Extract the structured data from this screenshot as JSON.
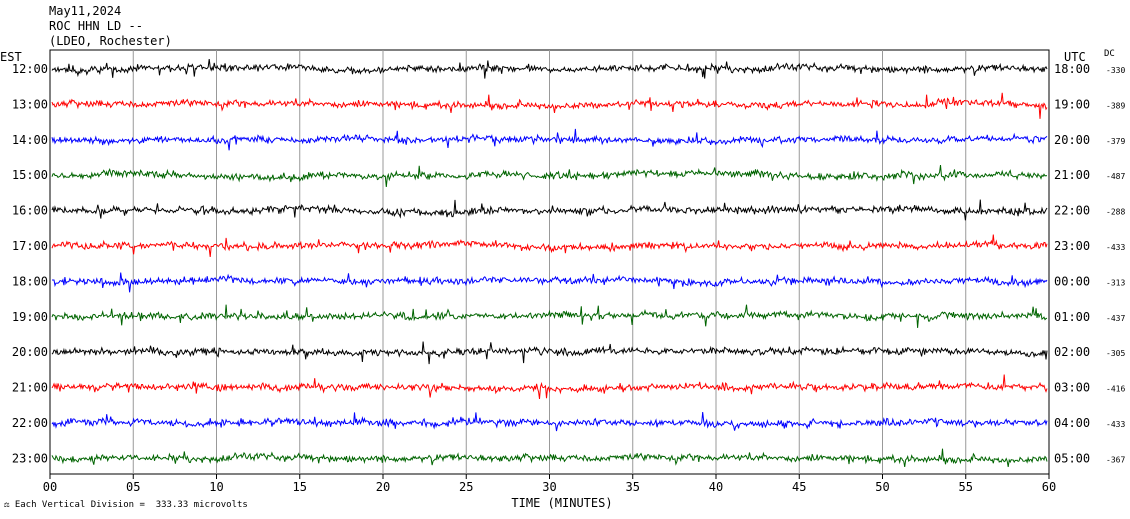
{
  "header": {
    "date": "May11,2024",
    "station": "ROC HHN LD --",
    "location": "(LDEO, Rochester)"
  },
  "left_axis_title": "EST",
  "right_axis_title": "UTC",
  "dc_title": "DC",
  "footer_note": "Each Vertical Division =  333.33 microvolts",
  "colors": [
    "#000000",
    "#ff0000",
    "#0000ff",
    "#006400"
  ],
  "chart_data": {
    "type": "line",
    "title": "May11,2024 ROC HHN LD -- (LDEO, Rochester)",
    "xlabel": "TIME (MINUTES)",
    "ylabel_left": "EST",
    "ylabel_right": "UTC",
    "xlim": [
      0,
      60
    ],
    "x_ticks": [
      "00",
      "05",
      "10",
      "15",
      "20",
      "25",
      "30",
      "35",
      "40",
      "45",
      "50",
      "55",
      "60"
    ],
    "grid": "vertical lines every 5 minutes",
    "vertical_division_microvolts": 333.33,
    "rows": [
      {
        "est": "12:00",
        "utc": "18:00",
        "dc": "-330",
        "color": "#000000"
      },
      {
        "est": "13:00",
        "utc": "19:00",
        "dc": "-389",
        "color": "#ff0000"
      },
      {
        "est": "14:00",
        "utc": "20:00",
        "dc": "-379",
        "color": "#0000ff"
      },
      {
        "est": "15:00",
        "utc": "21:00",
        "dc": "-487",
        "color": "#006400"
      },
      {
        "est": "16:00",
        "utc": "22:00",
        "dc": "-288",
        "color": "#000000"
      },
      {
        "est": "17:00",
        "utc": "23:00",
        "dc": "-433",
        "color": "#ff0000"
      },
      {
        "est": "18:00",
        "utc": "00:00",
        "dc": "-313",
        "color": "#0000ff"
      },
      {
        "est": "19:00",
        "utc": "01:00",
        "dc": "-437",
        "color": "#006400"
      },
      {
        "est": "20:00",
        "utc": "02:00",
        "dc": "-305",
        "color": "#000000"
      },
      {
        "est": "21:00",
        "utc": "03:00",
        "dc": "-416",
        "color": "#ff0000"
      },
      {
        "est": "22:00",
        "utc": "04:00",
        "dc": "-433",
        "color": "#0000ff"
      },
      {
        "est": "23:00",
        "utc": "05:00",
        "dc": "-367",
        "color": "#006400"
      }
    ]
  }
}
